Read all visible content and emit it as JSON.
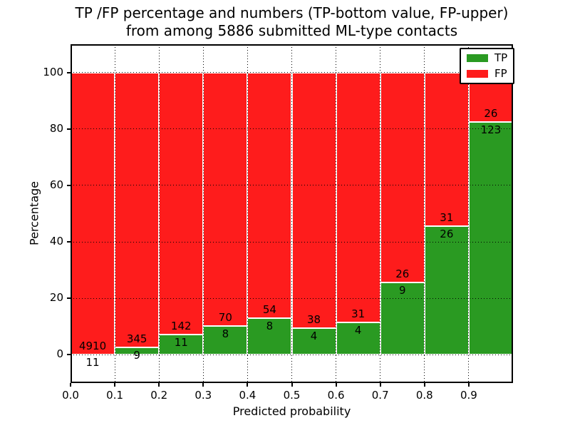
{
  "chart_data": {
    "type": "bar",
    "stacked": true,
    "title_line1": "TP /FP percentage and numbers (TP-bottom value, FP-upper)",
    "title_line2": "from among 5886 submitted ML-type contacts",
    "xlabel": "Predicted probability",
    "ylabel": "Percentage",
    "total_contacts": 5886,
    "xlim": [
      0.0,
      1.0
    ],
    "ylim": [
      -10,
      110
    ],
    "grid": "dotted-black",
    "bar_edge_color": "#ffffff",
    "bin_width": 0.1,
    "bins_start": [
      0.0,
      0.1,
      0.2,
      0.3,
      0.4,
      0.5,
      0.6,
      0.7,
      0.8,
      0.9
    ],
    "xtick_labels": [
      "0.0",
      "0.1",
      "0.2",
      "0.3",
      "0.4",
      "0.5",
      "0.6",
      "0.7",
      "0.8",
      "0.9"
    ],
    "ytick_values": [
      0,
      20,
      40,
      60,
      80,
      100
    ],
    "ytick_labels": [
      "0",
      "20",
      "40",
      "60",
      "80",
      "100"
    ],
    "label_convention": "TP-bottom value, FP-upper",
    "series": [
      {
        "name": "TP",
        "color": "#2a9a22",
        "counts": [
          11,
          9,
          11,
          8,
          8,
          4,
          4,
          9,
          26,
          123
        ]
      },
      {
        "name": "FP",
        "color": "#fe1c1c",
        "counts": [
          4910,
          345,
          142,
          70,
          54,
          38,
          31,
          26,
          31,
          26
        ]
      }
    ],
    "legend": {
      "position": "upper right",
      "entries": [
        "TP",
        "FP"
      ]
    }
  }
}
